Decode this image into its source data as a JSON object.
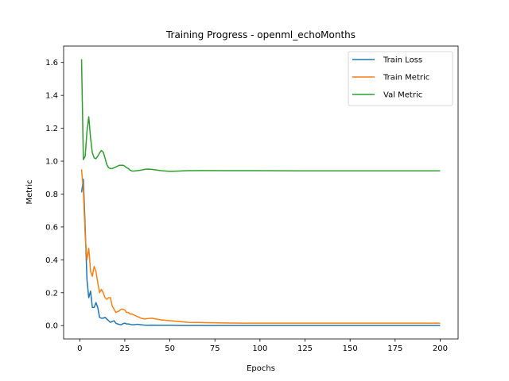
{
  "chart_data": {
    "type": "line",
    "title": "Training Progress - openml_echoMonths",
    "xlabel": "Epochs",
    "ylabel": "Metric",
    "xlim": [
      -8.95,
      209.95
    ],
    "ylim": [
      -0.081,
      1.7
    ],
    "xticks": [
      0,
      25,
      50,
      75,
      100,
      125,
      150,
      175,
      200
    ],
    "yticks": [
      0.0,
      0.2,
      0.4,
      0.6,
      0.8,
      1.0,
      1.2,
      1.4,
      1.6
    ],
    "grid": false,
    "legend_position": "top-right",
    "series": [
      {
        "name": "Train Loss",
        "color": "#1f77b4",
        "x": [
          1,
          2,
          3,
          4,
          5,
          6,
          7,
          8,
          9,
          10,
          11,
          12,
          13,
          14,
          15,
          16,
          17,
          18,
          19,
          20,
          21,
          22,
          23,
          24,
          25,
          26,
          27,
          28,
          29,
          30,
          32,
          34,
          36,
          38,
          40,
          45,
          50,
          55,
          60,
          70,
          80,
          90,
          100,
          120,
          140,
          160,
          180,
          200
        ],
        "y": [
          0.81,
          0.89,
          0.6,
          0.28,
          0.17,
          0.21,
          0.11,
          0.11,
          0.14,
          0.11,
          0.05,
          0.045,
          0.045,
          0.05,
          0.04,
          0.03,
          0.02,
          0.025,
          0.03,
          0.015,
          0.01,
          0.007,
          0.005,
          0.012,
          0.015,
          0.01,
          0.01,
          0.008,
          0.005,
          0.005,
          0.008,
          0.005,
          0.003,
          0.002,
          0.003,
          0.002,
          0.002,
          0.001,
          0.001,
          0.001,
          0.001,
          0.001,
          0.001,
          0.001,
          0.001,
          0.001,
          0.001,
          0.001
        ]
      },
      {
        "name": "Train Metric",
        "color": "#ff7f0e",
        "x": [
          1,
          2,
          3,
          4,
          5,
          6,
          7,
          8,
          9,
          10,
          11,
          12,
          13,
          14,
          15,
          16,
          17,
          18,
          19,
          20,
          21,
          22,
          23,
          24,
          25,
          26,
          27,
          28,
          29,
          30,
          32,
          34,
          36,
          38,
          40,
          45,
          50,
          55,
          60,
          70,
          80,
          90,
          100,
          120,
          140,
          160,
          180,
          200
        ],
        "y": [
          0.95,
          0.82,
          0.55,
          0.4,
          0.47,
          0.33,
          0.3,
          0.36,
          0.33,
          0.26,
          0.2,
          0.22,
          0.2,
          0.17,
          0.16,
          0.17,
          0.17,
          0.12,
          0.1,
          0.08,
          0.085,
          0.09,
          0.1,
          0.1,
          0.095,
          0.08,
          0.08,
          0.07,
          0.07,
          0.065,
          0.055,
          0.045,
          0.04,
          0.043,
          0.045,
          0.035,
          0.03,
          0.025,
          0.02,
          0.018,
          0.016,
          0.015,
          0.015,
          0.015,
          0.015,
          0.015,
          0.015,
          0.015
        ]
      },
      {
        "name": "Val Metric",
        "color": "#2ca02c",
        "x": [
          1,
          2,
          3,
          4,
          5,
          6,
          7,
          8,
          9,
          10,
          11,
          12,
          13,
          14,
          15,
          16,
          17,
          18,
          19,
          20,
          21,
          22,
          23,
          24,
          25,
          26,
          27,
          28,
          29,
          30,
          32,
          34,
          36,
          38,
          40,
          45,
          50,
          55,
          60,
          70,
          80,
          90,
          100,
          120,
          140,
          160,
          180,
          200
        ],
        "y": [
          1.62,
          1.01,
          1.03,
          1.18,
          1.27,
          1.14,
          1.05,
          1.02,
          1.015,
          1.03,
          1.05,
          1.065,
          1.055,
          1.02,
          0.98,
          0.96,
          0.955,
          0.955,
          0.96,
          0.965,
          0.97,
          0.975,
          0.975,
          0.975,
          0.97,
          0.96,
          0.955,
          0.945,
          0.94,
          0.94,
          0.942,
          0.945,
          0.95,
          0.952,
          0.95,
          0.942,
          0.938,
          0.94,
          0.942,
          0.943,
          0.942,
          0.942,
          0.942,
          0.941,
          0.941,
          0.941,
          0.941,
          0.941
        ]
      }
    ]
  }
}
